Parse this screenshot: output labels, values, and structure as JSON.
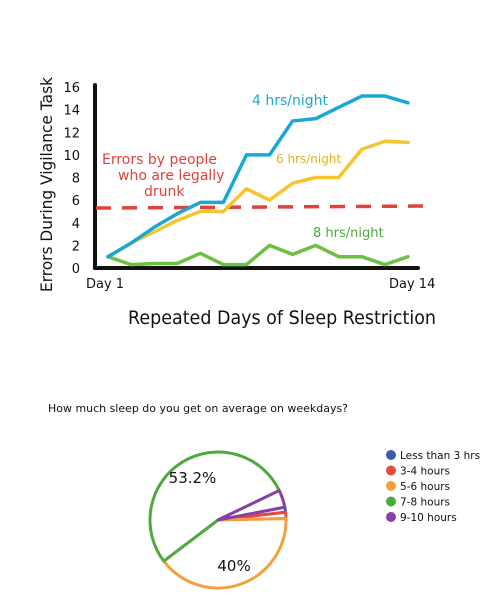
{
  "chart_data": [
    {
      "type": "line",
      "title": "",
      "xlabel": "Repeated Days of Sleep Restriction",
      "ylabel": "Errors During Vigilance Task",
      "x_tick_labels": [
        "Day 1",
        "Day 14"
      ],
      "x": [
        1,
        2,
        3,
        4,
        5,
        6,
        7,
        8,
        9,
        10,
        11,
        12,
        13,
        14
      ],
      "xlim": [
        1,
        14
      ],
      "ylim": [
        0,
        16
      ],
      "y_ticks": [
        0,
        2,
        4,
        6,
        8,
        10,
        12,
        14,
        16
      ],
      "grid": false,
      "series": [
        {
          "name": "4 hrs/night",
          "color": "#1aa7d6",
          "values": [
            1,
            2.2,
            3.6,
            4.8,
            5.8,
            5.8,
            10,
            10,
            13,
            13.2,
            14.2,
            15.2,
            15.2,
            14.6
          ]
        },
        {
          "name": "6 hrs/night",
          "color": "#f5c431",
          "values": [
            1,
            2.2,
            3.2,
            4.2,
            5,
            5,
            7,
            6,
            7.5,
            8,
            8,
            10.5,
            11.2,
            11.1
          ]
        },
        {
          "name": "8 hrs/night",
          "color": "#6cc043",
          "values": [
            1,
            0.3,
            0.4,
            0.4,
            1.3,
            0.3,
            0.3,
            2,
            1.2,
            2,
            1,
            1,
            0.3,
            1
          ]
        }
      ],
      "reference_line": {
        "label": "Errors by people who are legally drunk",
        "value": 5.3,
        "color": "#e0413a",
        "style": "dashed"
      }
    },
    {
      "type": "pie",
      "title": "How much sleep do you get on average on weekdays?",
      "legend_position": "right",
      "slices": [
        {
          "label": "Less than 3 hrs",
          "value": 1.2,
          "color": "#3b5aa8"
        },
        {
          "label": "3-4 hours",
          "value": 1.5,
          "color": "#e54a3a"
        },
        {
          "label": "5-6 hours",
          "value": 40,
          "color": "#f2a03d",
          "data_label": "40%"
        },
        {
          "label": "7-8 hours",
          "value": 53.2,
          "color": "#4daa3c",
          "data_label": "53.2%"
        },
        {
          "label": "9-10 hours",
          "value": 4.1,
          "color": "#8a3fa6"
        }
      ]
    }
  ]
}
